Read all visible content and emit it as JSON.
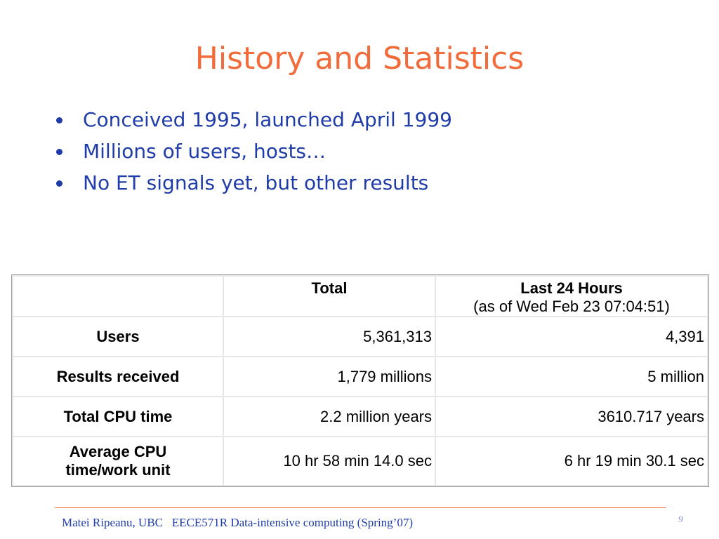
{
  "slide": {
    "title": "History and Statistics",
    "bullets": [
      "Conceived 1995, launched April 1999",
      "Millions of users, hosts…",
      "No ET signals yet, but other results"
    ]
  },
  "table": {
    "headers": [
      "",
      "Total",
      "Last 24 Hours",
      "(as of Wed Feb 23 07:04:51)"
    ],
    "rows": [
      {
        "label": "Users",
        "total": "5,361,313",
        "last24": "4,391"
      },
      {
        "label": "Results received",
        "total": "1,779 millions",
        "last24": "5 million"
      },
      {
        "label": "Total CPU time",
        "total": "2.2 million years",
        "last24": "3610.717 years"
      },
      {
        "label_line1": "Average CPU",
        "label_line2": "time/work unit",
        "total": "10 hr 58 min 14.0 sec",
        "last24": "6 hr 19 min 30.1 sec"
      }
    ]
  },
  "footer": {
    "text": "Matei Ripeanu, UBC   EECE571R Data-intensive computing (Spring’07)",
    "page_number": "9"
  },
  "colors": {
    "title": "#f26b3a",
    "body_text": "#1f3ca8",
    "footer_rule": "#f26b3a"
  }
}
